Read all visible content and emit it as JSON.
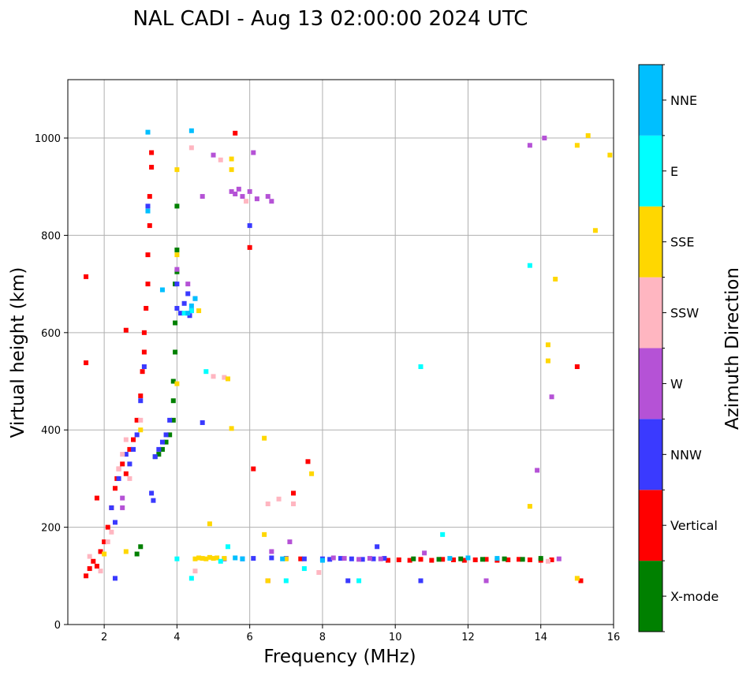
{
  "chart_data": {
    "type": "scatter",
    "title": "NAL CADI - Aug 13 02:00:00 2024 UTC",
    "xlabel": "Frequency (MHz)",
    "ylabel": "Virtual height (km)",
    "xlim": [
      1,
      16
    ],
    "ylim": [
      0,
      1120
    ],
    "xticks": [
      2,
      4,
      6,
      8,
      10,
      12,
      14,
      16
    ],
    "yticks": [
      0,
      200,
      400,
      600,
      800,
      1000
    ],
    "grid": true,
    "colorbar": {
      "label": "Azimuth Direction",
      "position": "right",
      "categories": [
        {
          "name": "X-mode",
          "color": "#008000"
        },
        {
          "name": "Vertical",
          "color": "#ff0000"
        },
        {
          "name": "NNW",
          "color": "#3a3aff"
        },
        {
          "name": "W",
          "color": "#b552d6"
        },
        {
          "name": "SSW",
          "color": "#ffb6c1"
        },
        {
          "name": "SSE",
          "color": "#ffd700"
        },
        {
          "name": "E",
          "color": "#00ffff"
        },
        {
          "name": "NNE",
          "color": "#00bfff"
        }
      ]
    },
    "series": [
      {
        "name": "Vertical",
        "points": [
          [
            1.5,
            100
          ],
          [
            1.6,
            115
          ],
          [
            1.7,
            130
          ],
          [
            1.8,
            120
          ],
          [
            1.9,
            150
          ],
          [
            2.0,
            170
          ],
          [
            2.1,
            200
          ],
          [
            2.2,
            240
          ],
          [
            2.3,
            280
          ],
          [
            2.35,
            300
          ],
          [
            2.4,
            320
          ],
          [
            2.5,
            330
          ],
          [
            2.6,
            310
          ],
          [
            2.7,
            360
          ],
          [
            2.8,
            380
          ],
          [
            2.9,
            420
          ],
          [
            3.0,
            470
          ],
          [
            3.05,
            520
          ],
          [
            3.1,
            560
          ],
          [
            3.1,
            600
          ],
          [
            3.15,
            650
          ],
          [
            3.2,
            700
          ],
          [
            3.2,
            760
          ],
          [
            3.25,
            820
          ],
          [
            3.25,
            880
          ],
          [
            3.3,
            940
          ],
          [
            3.3,
            970
          ],
          [
            1.5,
            715
          ],
          [
            1.5,
            538
          ],
          [
            2.6,
            605
          ],
          [
            5.6,
            1010
          ],
          [
            6.0,
            775
          ],
          [
            6.1,
            320
          ],
          [
            7.6,
            335
          ],
          [
            7.2,
            270
          ],
          [
            15.0,
            530
          ],
          [
            6.5,
            90
          ],
          [
            7.4,
            135
          ],
          [
            9.8,
            132
          ],
          [
            10.1,
            133
          ],
          [
            10.4,
            132
          ],
          [
            10.7,
            134
          ],
          [
            11.0,
            132
          ],
          [
            11.3,
            134
          ],
          [
            11.6,
            133
          ],
          [
            11.9,
            132
          ],
          [
            12.2,
            133
          ],
          [
            12.5,
            134
          ],
          [
            12.8,
            132
          ],
          [
            13.1,
            133
          ],
          [
            13.4,
            134
          ],
          [
            13.7,
            133
          ],
          [
            14.0,
            132
          ],
          [
            14.3,
            133
          ],
          [
            15.1,
            90
          ],
          [
            1.8,
            260
          ]
        ]
      },
      {
        "name": "X-mode",
        "points": [
          [
            3.0,
            160
          ],
          [
            2.9,
            145
          ],
          [
            3.4,
            345
          ],
          [
            3.5,
            350
          ],
          [
            3.6,
            360
          ],
          [
            3.7,
            375
          ],
          [
            3.8,
            390
          ],
          [
            3.9,
            420
          ],
          [
            3.9,
            460
          ],
          [
            3.9,
            500
          ],
          [
            3.95,
            560
          ],
          [
            3.95,
            620
          ],
          [
            3.95,
            700
          ],
          [
            4.0,
            725
          ],
          [
            4.0,
            770
          ],
          [
            4.0,
            860
          ],
          [
            10.5,
            135
          ],
          [
            11.2,
            134
          ],
          [
            11.8,
            135
          ],
          [
            12.4,
            134
          ],
          [
            13.0,
            135
          ],
          [
            13.5,
            134
          ],
          [
            14.0,
            136
          ]
        ]
      },
      {
        "name": "NNW",
        "points": [
          [
            2.2,
            240
          ],
          [
            2.3,
            210
          ],
          [
            2.4,
            300
          ],
          [
            2.6,
            350
          ],
          [
            2.7,
            330
          ],
          [
            2.8,
            360
          ],
          [
            2.9,
            390
          ],
          [
            3.0,
            460
          ],
          [
            3.1,
            530
          ],
          [
            3.3,
            270
          ],
          [
            3.35,
            255
          ],
          [
            3.4,
            345
          ],
          [
            3.5,
            360
          ],
          [
            3.6,
            375
          ],
          [
            3.7,
            390
          ],
          [
            3.8,
            420
          ],
          [
            4.0,
            650
          ],
          [
            4.1,
            640
          ],
          [
            4.2,
            660
          ],
          [
            4.3,
            680
          ],
          [
            4.35,
            635
          ],
          [
            4.4,
            645
          ],
          [
            4.5,
            670
          ],
          [
            2.3,
            95
          ],
          [
            5.3,
            135
          ],
          [
            5.8,
            135
          ],
          [
            6.1,
            136
          ],
          [
            6.6,
            137
          ],
          [
            7.0,
            136
          ],
          [
            7.5,
            135
          ],
          [
            8.0,
            135
          ],
          [
            8.2,
            134
          ],
          [
            8.5,
            136
          ],
          [
            8.8,
            135
          ],
          [
            9.1,
            134
          ],
          [
            9.4,
            135
          ],
          [
            9.5,
            160
          ],
          [
            9.7,
            136
          ],
          [
            8.7,
            90
          ],
          [
            10.7,
            90
          ],
          [
            6.0,
            820
          ],
          [
            4.7,
            415
          ],
          [
            4.0,
            700
          ],
          [
            3.2,
            860
          ]
        ]
      },
      {
        "name": "W",
        "points": [
          [
            2.5,
            260
          ],
          [
            2.5,
            240
          ],
          [
            5.0,
            965
          ],
          [
            5.5,
            890
          ],
          [
            5.6,
            885
          ],
          [
            5.7,
            895
          ],
          [
            5.8,
            880
          ],
          [
            6.0,
            890
          ],
          [
            6.2,
            875
          ],
          [
            6.5,
            880
          ],
          [
            6.6,
            870
          ],
          [
            4.7,
            880
          ],
          [
            7.1,
            170
          ],
          [
            6.6,
            150
          ],
          [
            8.3,
            137
          ],
          [
            8.6,
            136
          ],
          [
            9.0,
            134
          ],
          [
            9.3,
            136
          ],
          [
            9.6,
            135
          ],
          [
            10.8,
            147
          ],
          [
            12.5,
            90
          ],
          [
            13.7,
            985
          ],
          [
            14.1,
            1000
          ],
          [
            13.9,
            317
          ],
          [
            14.3,
            468
          ],
          [
            14.5,
            135
          ],
          [
            4.0,
            730
          ],
          [
            4.3,
            700
          ],
          [
            6.1,
            970
          ]
        ]
      },
      {
        "name": "SSW",
        "points": [
          [
            1.6,
            140
          ],
          [
            1.9,
            110
          ],
          [
            2.1,
            170
          ],
          [
            2.2,
            190
          ],
          [
            2.4,
            320
          ],
          [
            2.5,
            350
          ],
          [
            2.6,
            380
          ],
          [
            2.7,
            300
          ],
          [
            3.0,
            420
          ],
          [
            4.5,
            110
          ],
          [
            5.0,
            510
          ],
          [
            5.3,
            508
          ],
          [
            6.5,
            248
          ],
          [
            6.8,
            258
          ],
          [
            7.2,
            248
          ],
          [
            7.9,
            107
          ],
          [
            14.2,
            130
          ],
          [
            4.4,
            980
          ],
          [
            5.2,
            955
          ],
          [
            5.9,
            870
          ]
        ]
      },
      {
        "name": "SSE",
        "points": [
          [
            2.0,
            145
          ],
          [
            2.6,
            150
          ],
          [
            3.0,
            400
          ],
          [
            4.0,
            495
          ],
          [
            4.0,
            760
          ],
          [
            4.0,
            935
          ],
          [
            4.5,
            135
          ],
          [
            4.6,
            137
          ],
          [
            4.7,
            136
          ],
          [
            4.8,
            135
          ],
          [
            4.9,
            138
          ],
          [
            5.0,
            136
          ],
          [
            5.1,
            137
          ],
          [
            5.3,
            136
          ],
          [
            4.9,
            207
          ],
          [
            4.6,
            645
          ],
          [
            5.5,
            935
          ],
          [
            5.5,
            957
          ],
          [
            5.5,
            403
          ],
          [
            6.4,
            383
          ],
          [
            6.4,
            185
          ],
          [
            6.5,
            90
          ],
          [
            7.0,
            135
          ],
          [
            7.7,
            310
          ],
          [
            13.7,
            243
          ],
          [
            14.2,
            542
          ],
          [
            14.2,
            575
          ],
          [
            14.4,
            710
          ],
          [
            15.0,
            985
          ],
          [
            15.3,
            1005
          ],
          [
            15.5,
            810
          ],
          [
            15.9,
            965
          ],
          [
            15.0,
            95
          ],
          [
            5.4,
            505
          ]
        ]
      },
      {
        "name": "E",
        "points": [
          [
            4.0,
            135
          ],
          [
            4.4,
            95
          ],
          [
            4.4,
            645
          ],
          [
            4.8,
            520
          ],
          [
            5.4,
            160
          ],
          [
            7.0,
            90
          ],
          [
            7.5,
            115
          ],
          [
            9.0,
            90
          ],
          [
            11.3,
            185
          ],
          [
            13.7,
            738
          ],
          [
            10.7,
            530
          ],
          [
            5.2,
            130
          ],
          [
            4.2,
            640
          ]
        ]
      },
      {
        "name": "NNE",
        "points": [
          [
            3.2,
            1012
          ],
          [
            4.4,
            1015
          ],
          [
            4.3,
            640
          ],
          [
            4.4,
            655
          ],
          [
            4.5,
            670
          ],
          [
            3.6,
            688
          ],
          [
            5.6,
            137
          ],
          [
            5.8,
            135
          ],
          [
            6.9,
            135
          ],
          [
            8.0,
            132
          ],
          [
            11.5,
            136
          ],
          [
            12.0,
            137
          ],
          [
            12.8,
            136
          ],
          [
            3.2,
            850
          ]
        ]
      }
    ]
  }
}
